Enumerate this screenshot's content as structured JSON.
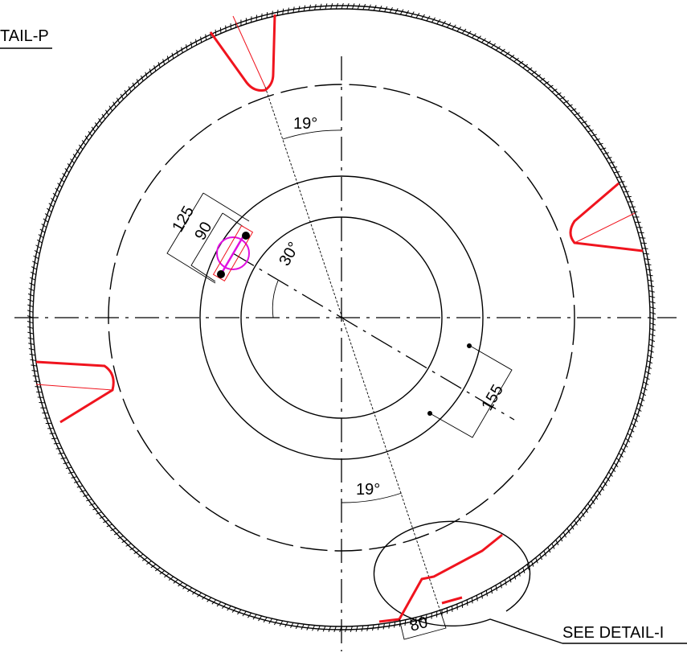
{
  "labels": {
    "detail_ref": "TAIL-P",
    "see_detail": "SEE DETAIL-I"
  },
  "dimensions": {
    "angle_top": "19°",
    "angle_bottom": "19°",
    "dim_125": "125",
    "dim_90": "90",
    "angle_30": "30°",
    "dim_155": "155",
    "dim_80": "80"
  }
}
